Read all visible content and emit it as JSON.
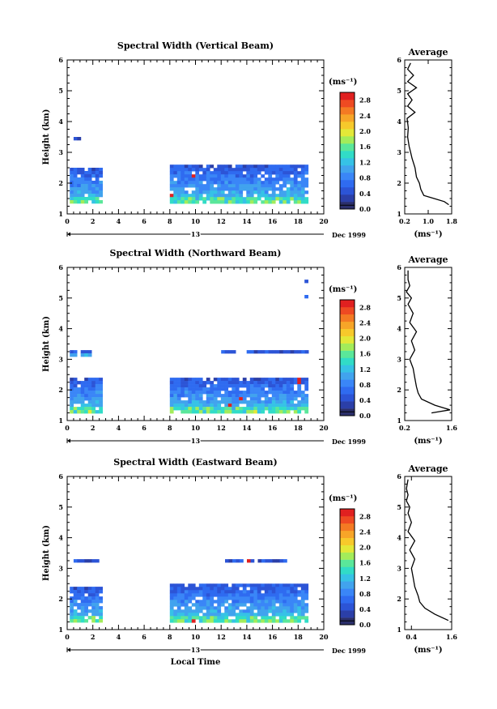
{
  "colors": {
    "scale": [
      "#2b2f6b",
      "#2b3fa8",
      "#2c54d6",
      "#2f6bf0",
      "#3a86f7",
      "#41a3ee",
      "#36c2e6",
      "#31dcc7",
      "#5ae79a",
      "#a3ec5a",
      "#e3e838",
      "#f7c92b",
      "#f7a528",
      "#f47a23",
      "#ee4a22",
      "#e02020"
    ]
  },
  "chart_data": [
    {
      "type": "heatmap",
      "title": "Spectral Width (Vertical Beam)",
      "ylabel": "Height (km)",
      "xlabel": "",
      "date_label": "13",
      "date_suffix": "Dec 1999",
      "xlim": [
        0,
        20
      ],
      "ylim": [
        1,
        6
      ],
      "xticks": [
        "0",
        "2",
        "4",
        "6",
        "8",
        "10",
        "12",
        "14",
        "16",
        "18",
        "20"
      ],
      "yticks": [
        "1",
        "2",
        "3",
        "4",
        "5",
        "6"
      ],
      "colorbar": {
        "unit": "(ms⁻¹)",
        "range": [
          0,
          3.0
        ],
        "ticks": [
          "0.0",
          "0.4",
          "0.8",
          "1.2",
          "1.6",
          "2.0",
          "2.4",
          "2.8"
        ]
      },
      "data_regions": [
        {
          "t_start": 0.2,
          "t_end": 2.6,
          "h_start": 1.4,
          "h_end": 2.5
        },
        {
          "t_start": 8.0,
          "t_end": 18.8,
          "h_start": 1.4,
          "h_end": 2.6
        },
        {
          "t_start": 0.5,
          "t_end": 0.9,
          "h_start": 3.4,
          "h_end": 3.5
        }
      ],
      "average": {
        "title": "Average",
        "xlabel": "(ms⁻¹)",
        "xlim": [
          0.2,
          1.8
        ],
        "xticks": [
          "0.2",
          "1.0",
          "1.8"
        ],
        "yticks": [
          "1",
          "2",
          "3",
          "4",
          "5",
          "6"
        ],
        "height": [
          1.3,
          1.4,
          1.5,
          1.6,
          1.8,
          2.0,
          2.2,
          2.5,
          2.8,
          3.0,
          3.2,
          3.5,
          3.8,
          4.1,
          4.3,
          4.5,
          4.7,
          4.9,
          5.1,
          5.3,
          5.5,
          5.7,
          5.9
        ],
        "value": [
          1.7,
          1.55,
          1.2,
          0.85,
          0.75,
          0.7,
          0.6,
          0.55,
          0.45,
          0.4,
          0.35,
          0.3,
          0.32,
          0.28,
          0.55,
          0.3,
          0.45,
          0.3,
          0.6,
          0.3,
          0.5,
          0.3,
          0.4
        ]
      }
    },
    {
      "type": "heatmap",
      "title": "Spectral Width (Northward Beam)",
      "ylabel": "Height (km)",
      "xlabel": "",
      "date_label": "13",
      "date_suffix": "Dec 1999",
      "xlim": [
        0,
        20
      ],
      "ylim": [
        1,
        6
      ],
      "xticks": [
        "0",
        "2",
        "4",
        "6",
        "8",
        "10",
        "12",
        "14",
        "16",
        "18",
        "20"
      ],
      "yticks": [
        "1",
        "2",
        "3",
        "4",
        "5",
        "6"
      ],
      "colorbar": {
        "unit": "(ms⁻¹)",
        "range": [
          0,
          3.0
        ],
        "ticks": [
          "0.0",
          "0.4",
          "0.8",
          "1.2",
          "1.6",
          "2.0",
          "2.4",
          "2.8"
        ]
      },
      "data_regions": [
        {
          "t_start": 0.2,
          "t_end": 2.6,
          "h_start": 1.3,
          "h_end": 2.4
        },
        {
          "t_start": 8.0,
          "t_end": 18.8,
          "h_start": 1.3,
          "h_end": 2.4
        },
        {
          "t_start": 0.2,
          "t_end": 1.8,
          "h_start": 3.15,
          "h_end": 3.3
        },
        {
          "t_start": 12.0,
          "t_end": 18.8,
          "h_start": 3.2,
          "h_end": 3.3
        },
        {
          "t_start": 18.5,
          "t_end": 18.8,
          "h_start": 5.0,
          "h_end": 5.1
        },
        {
          "t_start": 18.5,
          "t_end": 18.8,
          "h_start": 5.5,
          "h_end": 5.6
        }
      ],
      "average": {
        "title": "Average",
        "xlabel": "(ms⁻¹)",
        "xlim": [
          0.2,
          1.6
        ],
        "xticks": [
          "0.2",
          "1.6"
        ],
        "yticks": [
          "1",
          "2",
          "3",
          "4",
          "5",
          "6"
        ],
        "height": [
          1.25,
          1.35,
          1.5,
          1.7,
          1.9,
          2.1,
          2.4,
          2.7,
          3.0,
          3.3,
          3.6,
          3.9,
          4.2,
          4.5,
          4.8,
          5.0,
          5.2,
          5.4,
          5.6,
          5.9
        ],
        "value": [
          1.0,
          1.55,
          1.1,
          0.7,
          0.6,
          0.55,
          0.5,
          0.45,
          0.35,
          0.5,
          0.4,
          0.55,
          0.35,
          0.45,
          0.3,
          0.4,
          0.25,
          0.35,
          0.3,
          0.3
        ]
      }
    },
    {
      "type": "heatmap",
      "title": "Spectral Width (Eastward Beam)",
      "ylabel": "Height (km)",
      "xlabel": "Local Time",
      "date_label": "13",
      "date_suffix": "Dec 1999",
      "xlim": [
        0,
        20
      ],
      "ylim": [
        1,
        6
      ],
      "xticks": [
        "0",
        "2",
        "4",
        "6",
        "8",
        "10",
        "12",
        "14",
        "16",
        "18",
        "20"
      ],
      "yticks": [
        "1",
        "2",
        "3",
        "4",
        "5",
        "6"
      ],
      "colorbar": {
        "unit": "(ms⁻¹)",
        "range": [
          0,
          3.0
        ],
        "ticks": [
          "0.0",
          "0.4",
          "0.8",
          "1.2",
          "1.6",
          "2.0",
          "2.4",
          "2.8"
        ]
      },
      "data_regions": [
        {
          "t_start": 0.2,
          "t_end": 2.6,
          "h_start": 1.3,
          "h_end": 2.4
        },
        {
          "t_start": 8.0,
          "t_end": 18.8,
          "h_start": 1.3,
          "h_end": 2.5
        },
        {
          "t_start": 0.5,
          "t_end": 2.5,
          "h_start": 3.2,
          "h_end": 3.3
        },
        {
          "t_start": 12.3,
          "t_end": 17.0,
          "h_start": 3.2,
          "h_end": 3.3
        }
      ],
      "average": {
        "title": "Average",
        "xlabel": "(ms⁻¹)",
        "xlim": [
          0.2,
          1.6
        ],
        "xticks": [
          "0.4",
          "1.6"
        ],
        "yticks": [
          "1",
          "2",
          "3",
          "4",
          "5",
          "6"
        ],
        "height": [
          1.3,
          1.5,
          1.7,
          1.9,
          2.1,
          2.4,
          2.7,
          3.0,
          3.3,
          3.6,
          3.9,
          4.2,
          4.5,
          4.8,
          5.0,
          5.2,
          5.4,
          5.6,
          5.9
        ],
        "value": [
          1.5,
          1.1,
          0.8,
          0.65,
          0.6,
          0.5,
          0.45,
          0.4,
          0.5,
          0.35,
          0.5,
          0.3,
          0.4,
          0.3,
          0.35,
          0.25,
          0.3,
          0.25,
          0.3
        ]
      }
    }
  ]
}
